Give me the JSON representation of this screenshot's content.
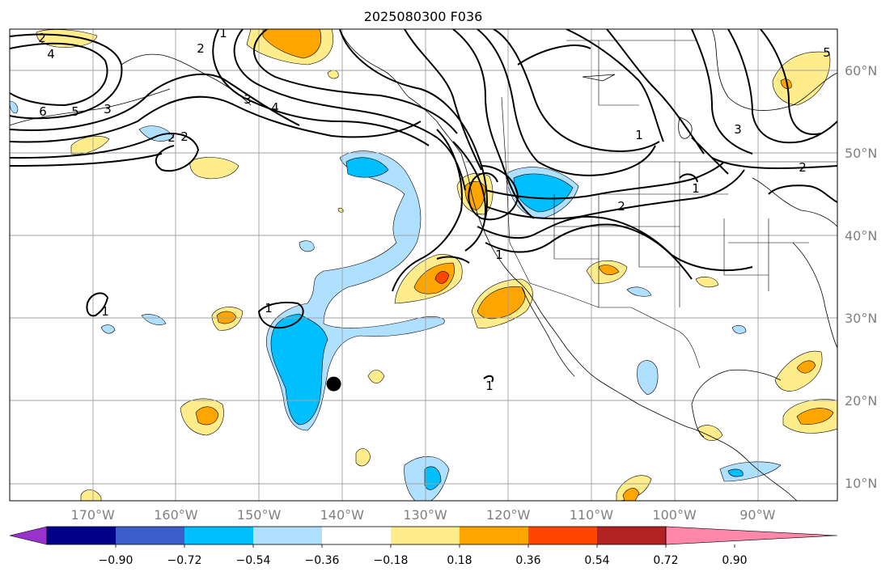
{
  "map": {
    "title": "2025080300 F036",
    "lat_labels": [
      {
        "label": "60°N",
        "lat": 60
      },
      {
        "label": "50°N",
        "lat": 50
      },
      {
        "label": "40°N",
        "lat": 40
      },
      {
        "label": "30°N",
        "lat": 30
      },
      {
        "label": "20°N",
        "lat": 20
      },
      {
        "label": "10°N",
        "lat": 10
      }
    ],
    "lon_labels": [
      {
        "label": "170°W",
        "lon": -170
      },
      {
        "label": "160°W",
        "lon": -160
      },
      {
        "label": "150°W",
        "lon": -150
      },
      {
        "label": "140°W",
        "lon": -140
      },
      {
        "label": "130°W",
        "lon": -130
      },
      {
        "label": "120°W",
        "lon": -120
      },
      {
        "label": "110°W",
        "lon": -110
      },
      {
        "label": "100°W",
        "lon": -100
      },
      {
        "label": "90°W",
        "lon": -90
      }
    ],
    "contour_labels": [
      "2",
      "4",
      "6",
      "5",
      "3",
      "2",
      "1",
      "2",
      "3",
      "4",
      "1",
      "1",
      "1",
      "2",
      "1",
      "3",
      "2",
      "5",
      "2",
      "1",
      "1"
    ],
    "marker": {
      "name": "storm-center-dot",
      "lat": 22.0,
      "lon": -141.0
    }
  },
  "colorbar": {
    "tick_labels": [
      "−0.90",
      "−0.72",
      "−0.54",
      "−0.36",
      "−0.18",
      "0.18",
      "0.36",
      "0.54",
      "0.72",
      "0.90"
    ],
    "colors": [
      "#9932cc",
      "#00008b",
      "#3a5fcd",
      "#00bfff",
      "#b0e0ff",
      "#ffffff",
      "#ffec8b",
      "#ffa500",
      "#ff4500",
      "#b22222",
      "#ff88aa"
    ],
    "under_color": "#9932cc",
    "over_color": "#ff88aa"
  }
}
